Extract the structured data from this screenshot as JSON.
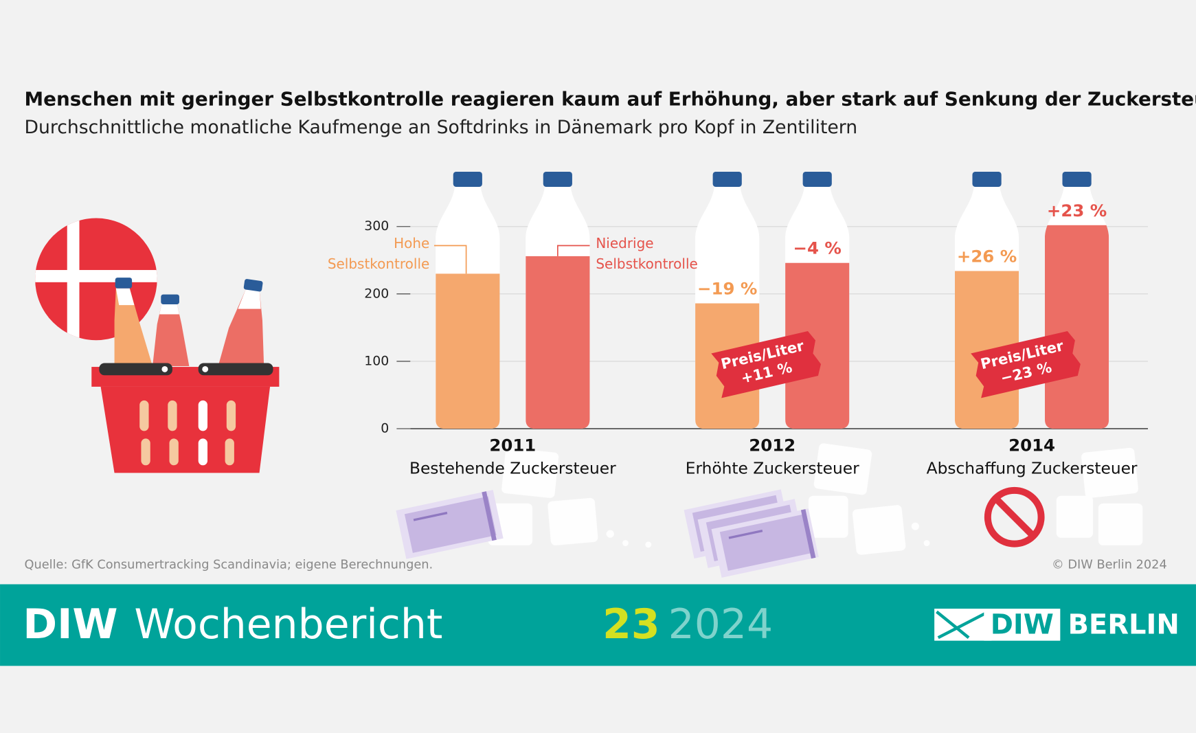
{
  "chart_data": {
    "type": "bar",
    "title": "Menschen mit geringer Selbstkontrolle reagieren kaum auf Erhöhung, aber stark auf Senkung der Zuckersteuer",
    "subtitle": "Durchschnittliche monatliche Kaufmenge an Softdrinks in Dänemark pro Kopf in Zentilitern",
    "categories": [
      "2011",
      "2012",
      "2014"
    ],
    "category_subtitles": [
      "Bestehende Zuckersteuer",
      "Erhöhte Zuckersteuer",
      "Abschaffung Zuckersteuer"
    ],
    "series": [
      {
        "name": "Hohe Selbstkontrolle",
        "color": "#f5a86e",
        "label_color": "#f39a52",
        "values": [
          230,
          186,
          234
        ],
        "change_labels": [
          null,
          "−19 %",
          "+26 %"
        ]
      },
      {
        "name": "Niedrige Selbstkontrolle",
        "color": "#ec6e65",
        "label_color": "#e5534b",
        "values": [
          256,
          246,
          302
        ],
        "change_labels": [
          null,
          "−4 %",
          "+23 %"
        ]
      }
    ],
    "price_tags": [
      null,
      {
        "line1": "Preis/Liter",
        "line2": "+11 %"
      },
      {
        "line1": "Preis/Liter",
        "line2": "−23 %"
      }
    ],
    "ylim": [
      0,
      300
    ],
    "yticks": [
      0,
      100,
      200,
      300
    ],
    "grid": true,
    "source": "Quelle: GfK Consumertracking Scandinavia; eigene Berechnungen.",
    "copyright": "© DIW Berlin 2024"
  },
  "footer": {
    "brand": "DIW",
    "publication": "Wochenbericht",
    "issue": "23",
    "year": "2024",
    "logo_left": "DIW",
    "logo_right": "BERLIN"
  }
}
